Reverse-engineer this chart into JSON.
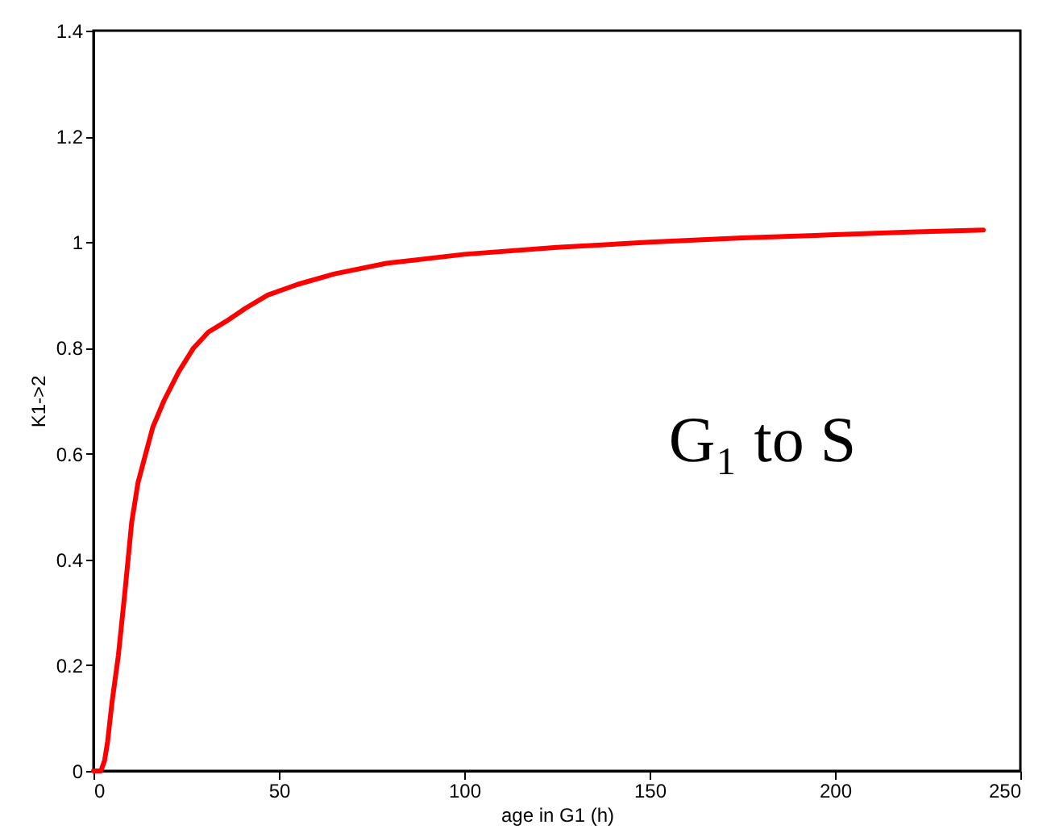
{
  "chart_data": {
    "type": "line",
    "xlabel": "age in G1 (h)",
    "ylabel": "K1->2",
    "x": [
      0,
      2,
      3,
      3.8,
      5,
      6.7,
      8.5,
      10.3,
      12,
      13.9,
      16,
      19,
      23,
      27,
      31,
      35.7,
      41,
      47,
      55,
      65,
      79,
      100,
      125,
      150,
      175,
      200,
      220,
      240
    ],
    "series": [
      {
        "color": "#ff0000",
        "values": [
          0,
          0,
          0.02,
          0.055,
          0.13,
          0.218,
          0.34,
          0.47,
          0.545,
          0.595,
          0.65,
          0.7,
          0.755,
          0.8,
          0.83,
          0.85,
          0.875,
          0.9,
          0.92,
          0.94,
          0.96,
          0.977,
          0.99,
          1.0,
          1.008,
          1.014,
          1.019,
          1.023
        ]
      }
    ],
    "xlim": [
      0,
      250
    ],
    "xticks": [
      0,
      50,
      100,
      150,
      200,
      250
    ],
    "ylim": [
      0,
      1.4
    ],
    "yticks": [
      0,
      0.2,
      0.4,
      0.6,
      0.8,
      1,
      1.2,
      1.4
    ],
    "grid": false,
    "marker": "none",
    "line_style": "solid",
    "annotations": [
      "G₁ to S"
    ]
  }
}
